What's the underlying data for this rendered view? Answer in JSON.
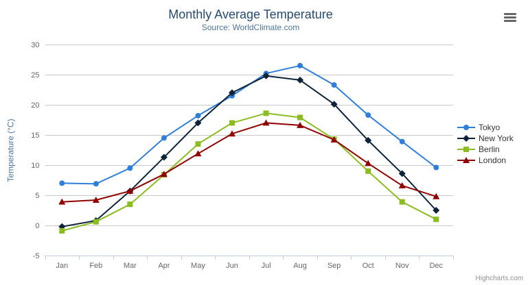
{
  "chart_data": {
    "type": "line",
    "title": "Monthly Average Temperature",
    "subtitle": "Source: WorldClimate.com",
    "xlabel": "",
    "ylabel": "Temperature (°C)",
    "categories": [
      "Jan",
      "Feb",
      "Mar",
      "Apr",
      "May",
      "Jun",
      "Jul",
      "Aug",
      "Sep",
      "Oct",
      "Nov",
      "Dec"
    ],
    "ylim": [
      -5,
      30
    ],
    "yticks": [
      -5,
      0,
      5,
      10,
      15,
      20,
      25,
      30
    ],
    "grid": true,
    "legend_position": "right",
    "series": [
      {
        "name": "Tokyo",
        "color": "#2f7ed8",
        "marker": "circle",
        "values": [
          7.0,
          6.9,
          9.5,
          14.5,
          18.2,
          21.5,
          25.2,
          26.5,
          23.3,
          18.3,
          13.9,
          9.6
        ]
      },
      {
        "name": "New York",
        "color": "#0d233a",
        "marker": "diamond",
        "values": [
          -0.2,
          0.8,
          5.7,
          11.3,
          17.0,
          22.0,
          24.8,
          24.1,
          20.1,
          14.1,
          8.6,
          2.5
        ]
      },
      {
        "name": "Berlin",
        "color": "#8bbc21",
        "marker": "square",
        "values": [
          -0.9,
          0.6,
          3.5,
          8.4,
          13.5,
          17.0,
          18.6,
          17.9,
          14.3,
          9.0,
          3.9,
          1.0
        ]
      },
      {
        "name": "London",
        "color": "#910000",
        "marker": "triangle",
        "values": [
          3.9,
          4.2,
          5.7,
          8.5,
          11.9,
          15.2,
          17.0,
          16.6,
          14.2,
          10.3,
          6.6,
          4.8
        ]
      }
    ],
    "style_colors": {
      "title": "#274b6d",
      "subtitle": "#4d759e",
      "axis_title": "#4d759e",
      "axis_labels": "#666666",
      "grid_line": "#c9c9c9",
      "axis_line": "#c0d0e0",
      "legend_text": "#333333",
      "credits_text": "#909090",
      "menu_icon": "#666666"
    }
  },
  "credits": {
    "label": "Highcharts.com"
  }
}
